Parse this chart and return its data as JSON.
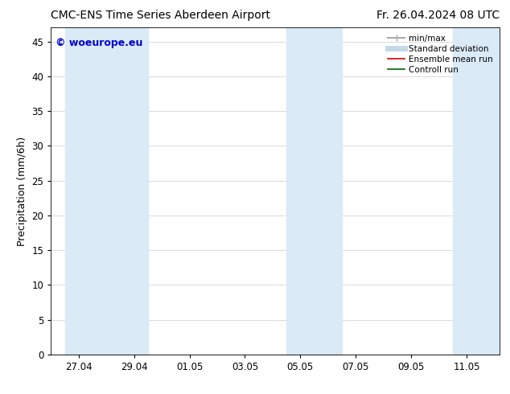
{
  "title_left": "CMC-ENS Time Series Aberdeen Airport",
  "title_right": "Fr. 26.04.2024 08 UTC",
  "ylabel": "Precipitation (mm/6h)",
  "watermark": "© woeurope.eu",
  "watermark_color": "#0000cc",
  "ylim": [
    0,
    47
  ],
  "yticks": [
    0,
    5,
    10,
    15,
    20,
    25,
    30,
    35,
    40,
    45
  ],
  "xtick_labels": [
    "27.04",
    "29.04",
    "01.05",
    "03.05",
    "05.05",
    "07.05",
    "09.05",
    "11.05"
  ],
  "xtick_positions": [
    1,
    3,
    5,
    7,
    9,
    11,
    13,
    15
  ],
  "x_min": 0.0,
  "x_max": 16.2,
  "background_color": "#ffffff",
  "plot_bg_color": "#ffffff",
  "shaded_color": "#daeaf7",
  "shaded_regions": [
    [
      0.5,
      2.5
    ],
    [
      2.5,
      3.5
    ],
    [
      8.5,
      10.5
    ],
    [
      14.5,
      16.2
    ]
  ],
  "legend_labels": [
    "min/max",
    "Standard deviation",
    "Ensemble mean run",
    "Controll run"
  ],
  "legend_colors_line": [
    "#aaaaaa",
    "#c5d8ea",
    "#dd0000",
    "#006600"
  ],
  "title_fontsize": 10,
  "tick_label_fontsize": 8.5,
  "ylabel_fontsize": 9,
  "watermark_fontsize": 9
}
